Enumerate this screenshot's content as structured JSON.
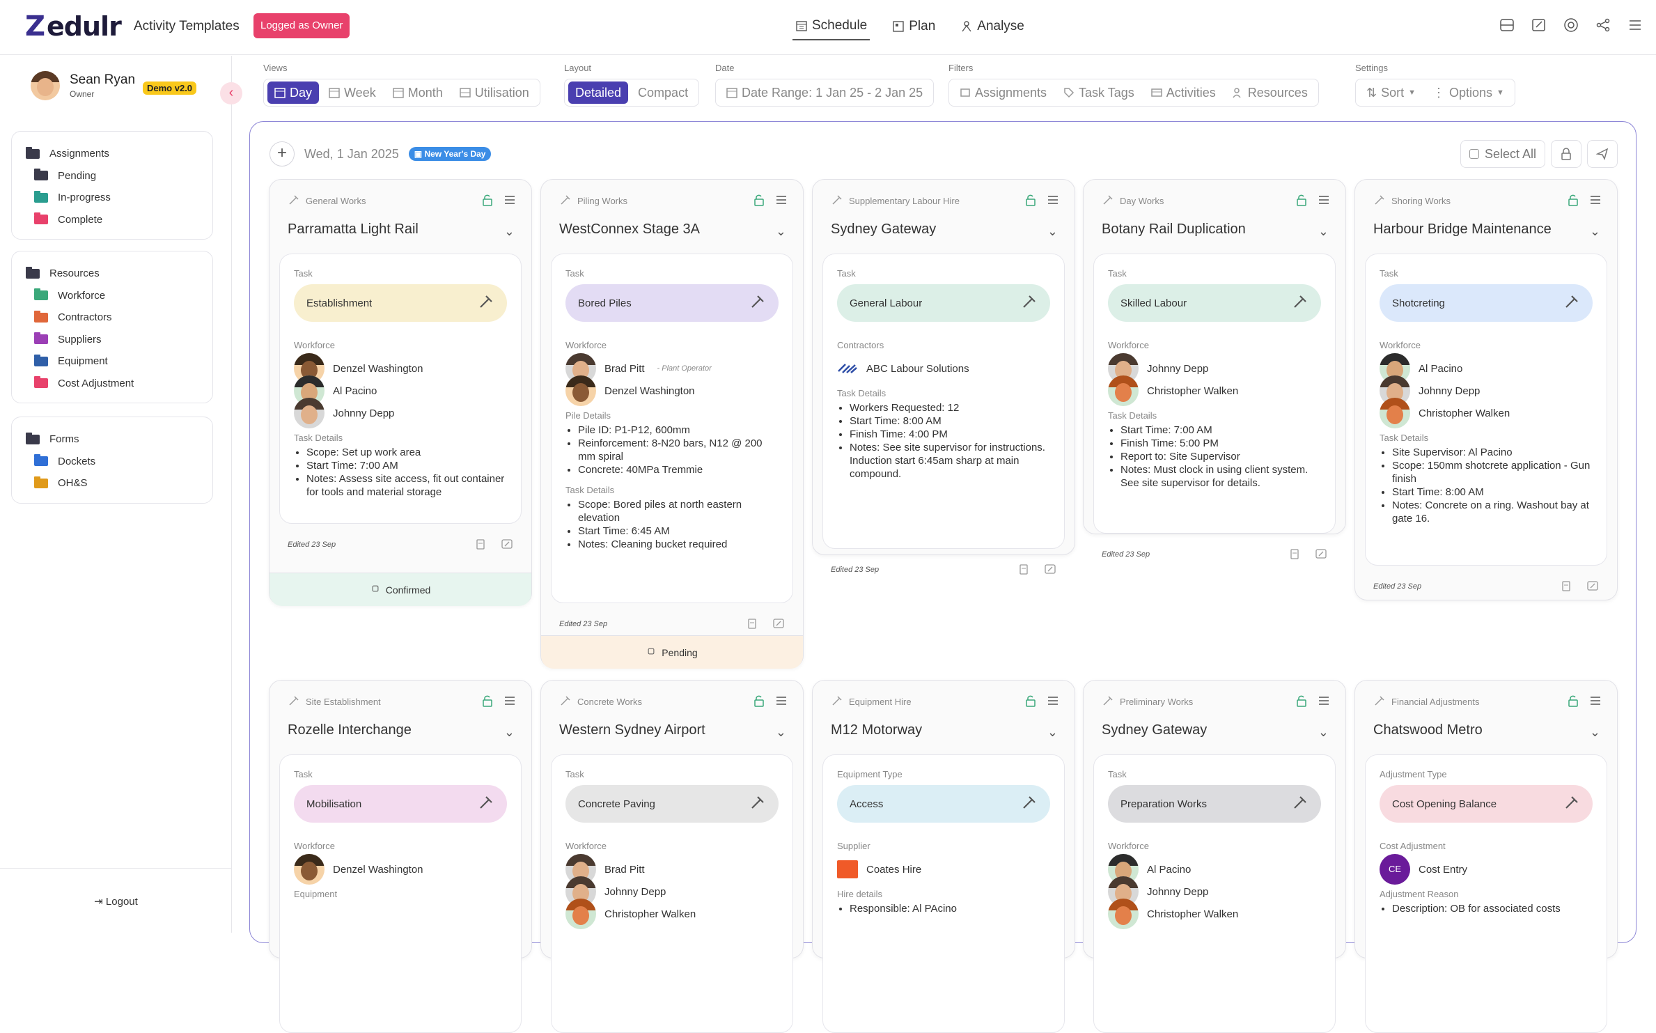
{
  "app": {
    "brand": "edulr",
    "brand_mark": "Z",
    "title": "Activity Templates",
    "owner_badge": "Logged as Owner"
  },
  "topnav": [
    {
      "label": "Schedule",
      "icon": "calendar-icon",
      "active": true
    },
    {
      "label": "Plan",
      "icon": "plan-icon"
    },
    {
      "label": "Analyse",
      "icon": "analyse-icon"
    }
  ],
  "topicons": [
    "inbox-icon",
    "edit-icon",
    "support-icon",
    "share-icon",
    "menu-icon"
  ],
  "user": {
    "name": "Sean Ryan",
    "role": "Owner",
    "badge": "Demo v2.0"
  },
  "sidebar": {
    "assignments": {
      "title": "Assignments",
      "items": [
        {
          "label": "Pending",
          "color": "#3a3a4a"
        },
        {
          "label": "In-progress",
          "color": "#2a9d8f"
        },
        {
          "label": "Complete",
          "color": "#e8416b"
        }
      ]
    },
    "resources": {
      "title": "Resources",
      "items": [
        {
          "label": "Workforce",
          "color": "#3aa87a"
        },
        {
          "label": "Contractors",
          "color": "#e0673a"
        },
        {
          "label": "Suppliers",
          "color": "#9b3fb5"
        },
        {
          "label": "Equipment",
          "color": "#2f5fa8"
        },
        {
          "label": "Cost Adjustment",
          "color": "#e8416b"
        }
      ]
    },
    "forms": {
      "title": "Forms",
      "items": [
        {
          "label": "Dockets",
          "color": "#2f6fd6"
        },
        {
          "label": "OH&S",
          "color": "#e09a1a"
        }
      ]
    },
    "logout": "Logout"
  },
  "toolbar": {
    "views": {
      "label": "Views",
      "items": [
        "Day",
        "Week",
        "Month",
        "Utilisation"
      ],
      "active": "Day"
    },
    "layout": {
      "label": "Layout",
      "items": [
        "Detailed",
        "Compact"
      ],
      "active": "Detailed"
    },
    "date": {
      "label": "Date",
      "value": "Date Range: 1 Jan 25 - 2 Jan 25"
    },
    "filters": {
      "label": "Filters",
      "items": [
        "Assignments",
        "Task Tags",
        "Activities",
        "Resources"
      ]
    },
    "settings": {
      "label": "Settings",
      "sort": "Sort",
      "options": "Options"
    }
  },
  "board": {
    "date": "Wed, 1 Jan 2025",
    "holiday": "New Year's Day",
    "select_all": "Select All"
  },
  "cards": [
    {
      "category": "General Works",
      "title": "Parramatta Light Rail",
      "task_label": "Task",
      "task": "Establishment",
      "task_color": "#f8efcf",
      "people_label": "Workforce",
      "people": [
        {
          "name": "Denzel Washington",
          "role": ""
        },
        {
          "name": "Al Pacino",
          "role": ""
        },
        {
          "name": "Johnny Depp",
          "role": ""
        }
      ],
      "details_label": "Task Details",
      "details": [
        "Scope: Set up work area",
        "Start Time: 7:00 AM",
        "Notes: Assess site access, fit out container for tools and material storage"
      ],
      "edited": "Edited 23 Sep",
      "status": "Confirmed",
      "status_color": "#e7f5ef"
    },
    {
      "category": "Piling Works",
      "title": "WestConnex Stage 3A",
      "task_label": "Task",
      "task": "Bored Piles",
      "task_color": "#e3dcf4",
      "people_label": "Workforce",
      "people": [
        {
          "name": "Brad Pitt",
          "role": "- Plant Operator"
        },
        {
          "name": "Denzel Washington",
          "role": ""
        }
      ],
      "extra_label": "Pile Details",
      "extra": [
        "Pile ID: P1-P12, 600mm",
        "Reinforcement: 8-N20 bars, N12 @ 200 mm spiral",
        "Concrete: 40MPa Tremmie"
      ],
      "details_label": "Task Details",
      "details": [
        "Scope: Bored piles at north eastern elevation",
        "Start Time: 6:45 AM",
        "Notes: Cleaning bucket required"
      ],
      "edited": "Edited 23 Sep",
      "status": "Pending",
      "status_color": "#fcf0e2"
    },
    {
      "category": "Supplementary Labour Hire",
      "title": "Sydney Gateway",
      "task_label": "Task",
      "task": "General Labour",
      "task_color": "#dcefe7",
      "people_label": "Contractors",
      "contractor": "ABC Labour Solutions",
      "details_label": "Task Details",
      "details": [
        "Workers Requested: 12",
        "Start Time: 8:00 AM",
        "Finish Time: 4:00 PM",
        "Notes: See site supervisor for instructions. Induction start 6:45am sharp at main compound."
      ],
      "edited": "Edited 23 Sep"
    },
    {
      "category": "Day Works",
      "title": "Botany Rail Duplication",
      "task_label": "Task",
      "task": "Skilled Labour",
      "task_color": "#dcefe7",
      "people_label": "Workforce",
      "people": [
        {
          "name": "Johnny Depp",
          "role": ""
        },
        {
          "name": "Christopher Walken",
          "role": ""
        }
      ],
      "details_label": "Task Details",
      "details": [
        "Start Time: 7:00 AM",
        "Finish Time: 5:00 PM",
        "Report to: Site Supervisor",
        "Notes: Must clock in using client system. See site supervisor for details."
      ],
      "edited": "Edited 23 Sep"
    },
    {
      "category": "Shoring Works",
      "title": "Harbour Bridge Maintenance",
      "task_label": "Task",
      "task": "Shotcreting",
      "task_color": "#dbe8fb",
      "people_label": "Workforce",
      "people": [
        {
          "name": "Al Pacino",
          "role": ""
        },
        {
          "name": "Johnny Depp",
          "role": ""
        },
        {
          "name": "Christopher Walken",
          "role": ""
        }
      ],
      "details_label": "Task Details",
      "details": [
        "Site Supervisor: Al Pacino",
        "Scope: 150mm shotcrete application - Gun finish",
        "Start Time: 8:00 AM",
        "Notes: Concrete on a ring. Washout bay at gate 16."
      ],
      "edited": "Edited 23 Sep"
    },
    {
      "category": "Site Establishment",
      "title": "Rozelle Interchange",
      "task_label": "Task",
      "task": "Mobilisation",
      "task_color": "#f3dbef",
      "people_label": "Workforce",
      "people": [
        {
          "name": "Denzel Washington",
          "role": ""
        }
      ],
      "after_label": "Equipment"
    },
    {
      "category": "Concrete Works",
      "title": "Western Sydney Airport",
      "task_label": "Task",
      "task": "Concrete Paving",
      "task_color": "#e6e6e6",
      "people_label": "Workforce",
      "people": [
        {
          "name": "Brad Pitt",
          "role": ""
        },
        {
          "name": "Johnny Depp",
          "role": ""
        },
        {
          "name": "Christopher Walken",
          "role": ""
        }
      ]
    },
    {
      "category": "Equipment Hire",
      "title": "M12 Motorway",
      "task_label": "Equipment Type",
      "task": "Access",
      "task_color": "#dbeef5",
      "people_label": "Supplier",
      "supplier": "Coates Hire",
      "after_label": "Hire details",
      "after_item": "Responsible: Al PAcino"
    },
    {
      "category": "Preliminary Works",
      "title": "Sydney Gateway",
      "task_label": "Task",
      "task": "Preparation Works",
      "task_color": "#dcdcdf",
      "people_label": "Workforce",
      "people": [
        {
          "name": "Al Pacino",
          "role": ""
        },
        {
          "name": "Johnny Depp",
          "role": ""
        },
        {
          "name": "Christopher Walken",
          "role": ""
        }
      ]
    },
    {
      "category": "Financial Adjustments",
      "title": "Chatswood Metro",
      "task_label": "Adjustment Type",
      "task": "Cost Opening Balance",
      "task_color": "#f8dbe0",
      "people_label": "Cost Adjustment",
      "cost_initials": "CE",
      "cost_entry": "Cost Entry",
      "after_label": "Adjustment Reason",
      "after_item": "Description: OB for associated costs"
    }
  ]
}
